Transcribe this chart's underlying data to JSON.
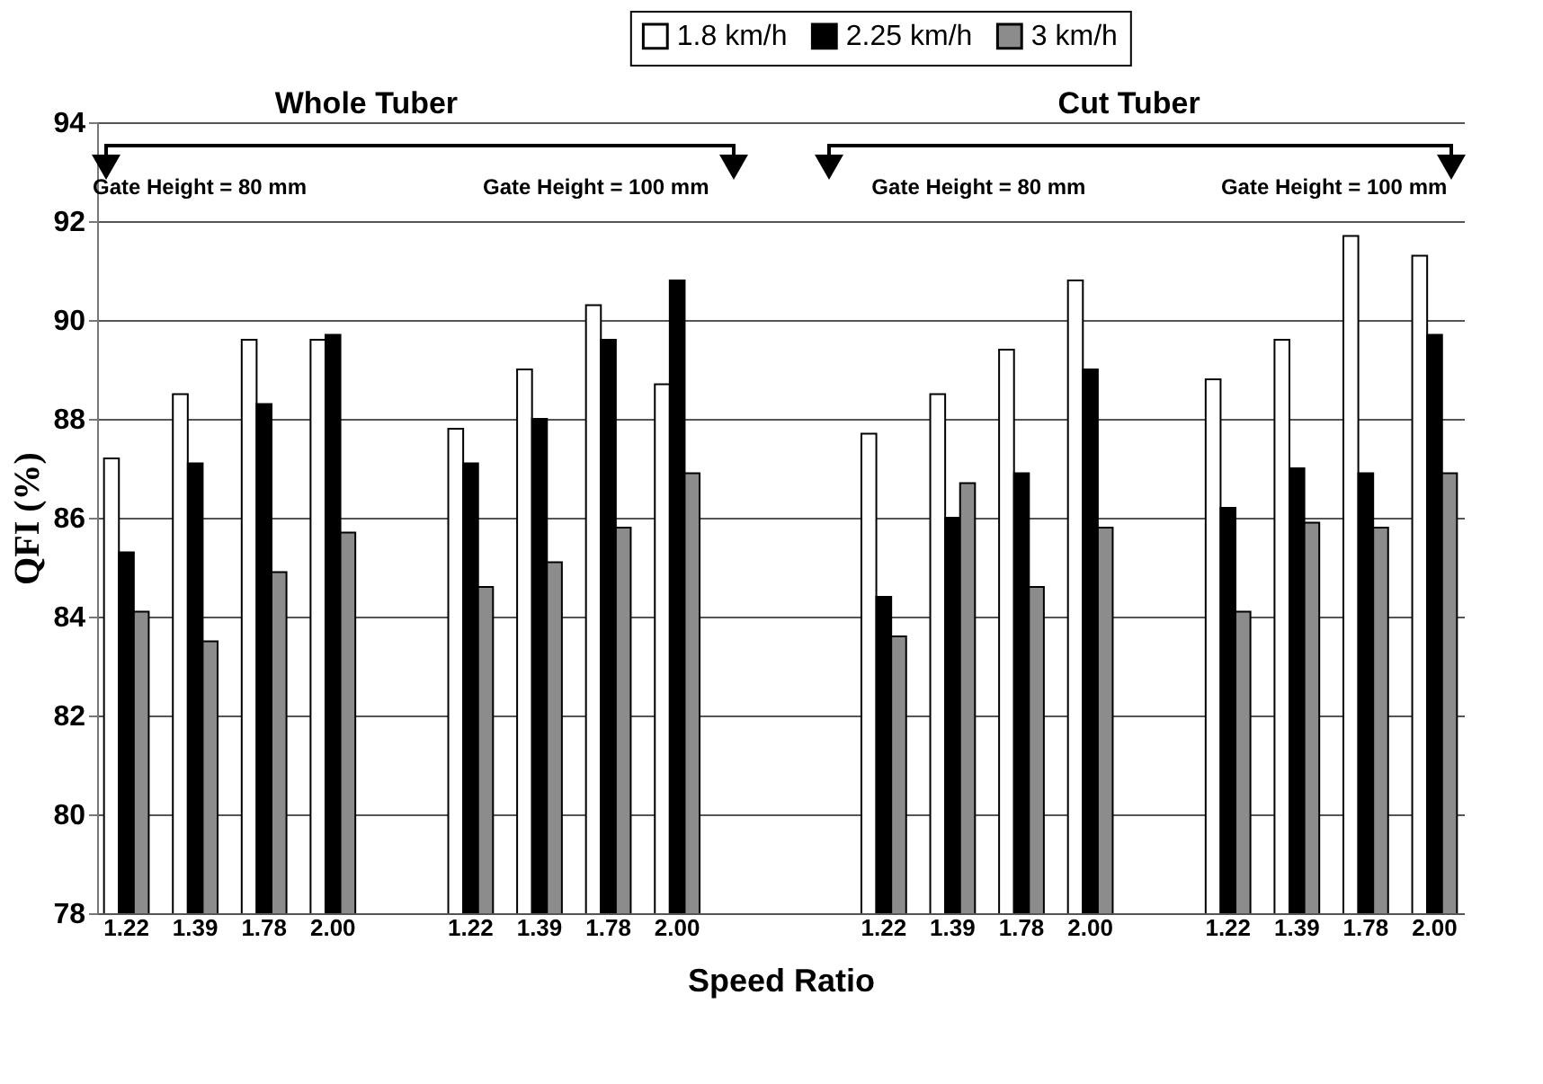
{
  "chart_data": {
    "type": "bar",
    "xlabel": "Speed Ratio",
    "ylabel": "QFI (%)",
    "categories": [
      "1.22",
      "1.39",
      "1.78",
      "2.00",
      null,
      "1.22",
      "1.39",
      "1.78",
      "2.00",
      null,
      null,
      "1.22",
      "1.39",
      "1.78",
      "2.00",
      null,
      "1.22",
      "1.39",
      "1.78",
      "2.00"
    ],
    "series": [
      {
        "name": "1.8 km/h",
        "color": "#ffffff",
        "values": [
          87.2,
          88.5,
          89.6,
          89.6,
          null,
          87.8,
          89.0,
          90.3,
          88.7,
          null,
          null,
          87.7,
          88.5,
          89.4,
          90.8,
          null,
          88.8,
          89.6,
          91.7,
          91.3
        ]
      },
      {
        "name": "2.25 km/h",
        "color": "#000000",
        "values": [
          85.3,
          87.1,
          88.3,
          89.7,
          null,
          87.1,
          88.0,
          89.6,
          90.8,
          null,
          null,
          84.4,
          86.0,
          86.9,
          89.0,
          null,
          86.2,
          87.0,
          86.9,
          89.7
        ]
      },
      {
        "name": "3 km/h",
        "color": "#8c8c8c",
        "values": [
          84.1,
          83.5,
          84.9,
          85.7,
          null,
          84.6,
          85.1,
          85.8,
          86.9,
          null,
          null,
          83.6,
          86.7,
          84.6,
          85.8,
          null,
          84.1,
          85.9,
          85.8,
          86.9
        ]
      }
    ],
    "ylim": [
      78,
      94
    ],
    "yticks": [
      78,
      80,
      82,
      84,
      86,
      88,
      90,
      92,
      94
    ],
    "grid": "y",
    "legend": "top",
    "annotations": [
      "Whole Tuber",
      "Cut Tuber",
      "Gate Height = 80 mm",
      "Gate Height = 100 mm",
      "Gate Height = 80 mm",
      "Gate Height = 100 mm"
    ]
  }
}
